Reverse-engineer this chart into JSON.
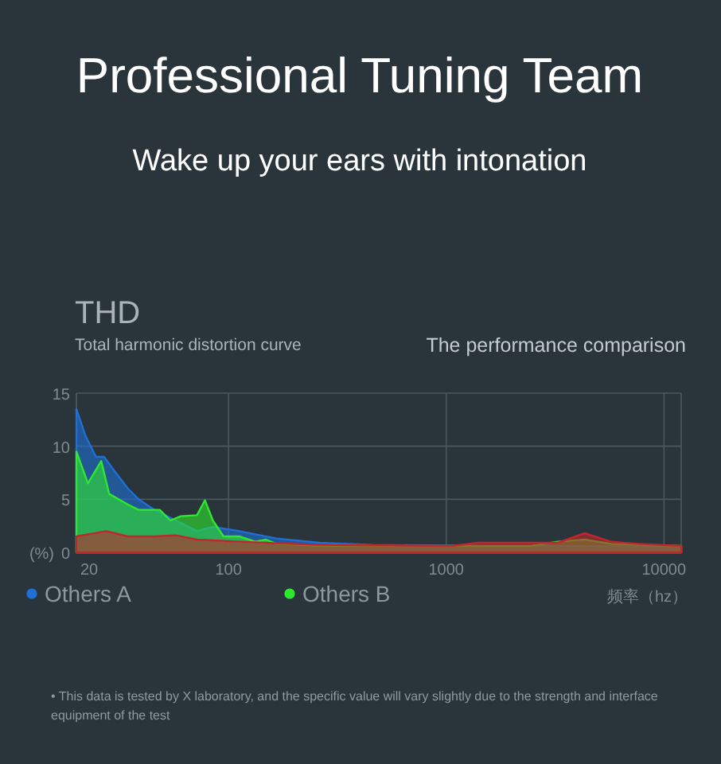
{
  "chart_data": {
    "type": "area",
    "title": "Professional Tuning Team",
    "subtitle": "Wake up your ears with intonation",
    "annotations": [
      "THD",
      "Total harmonic distortion curve",
      "The performance comparison",
      "• This data is tested by X laboratory, and the specific value will vary slightly due to the strength and interface equipment of the test"
    ],
    "ylabel": "(%)",
    "xlabel": "频率（hz）",
    "log": "x",
    "grid": true,
    "legend": "bottom",
    "marker": "none",
    "xlim": [
      20,
      12000
    ],
    "ylim": [
      0,
      15
    ],
    "xticks": [
      20,
      100,
      1000,
      10000
    ],
    "yticks": [
      0,
      5,
      10,
      15
    ],
    "series": [
      {
        "name": "Others A",
        "color": "#1f6fd6",
        "x": [
          20,
          22,
          24.6,
          26.8,
          29.1,
          34.5,
          38.6,
          45.7,
          57.2,
          71.6,
          84.7,
          112,
          166,
          261,
          457,
          1404,
          4320,
          12000
        ],
        "values": [
          13.5,
          11,
          9,
          9,
          8,
          6,
          5,
          4,
          3,
          2,
          2.4,
          2,
          1.3,
          0.9,
          0.7,
          0.6,
          0.6,
          0.5
        ]
      },
      {
        "name": "Others B",
        "color": "#2ee82e",
        "x": [
          20,
          22.6,
          26,
          28.3,
          34.5,
          38.6,
          48.3,
          54,
          60.4,
          71.6,
          77.9,
          84.7,
          94.8,
          112,
          132.7,
          148.6,
          166,
          261,
          800,
          2462,
          3259,
          4320,
          5716,
          12000
        ],
        "values": [
          9.5,
          6.5,
          8.6,
          5.5,
          4.5,
          4,
          4,
          3,
          3.4,
          3.5,
          4.9,
          3,
          1.5,
          1.5,
          1,
          1.2,
          0.8,
          0.6,
          0.6,
          0.6,
          1,
          1.2,
          0.8,
          0.6
        ]
      },
      {
        "color": "#c0272d",
        "x": [
          20,
          27.5,
          34.5,
          45.7,
          57.2,
          71.6,
          112,
          261,
          1060,
          1404,
          3259,
          4320,
          5716,
          7570,
          12000
        ],
        "values": [
          1.5,
          2,
          1.5,
          1.5,
          1.6,
          1.2,
          1,
          0.7,
          0.6,
          0.9,
          0.9,
          1.8,
          1,
          0.8,
          0.6
        ]
      }
    ]
  }
}
